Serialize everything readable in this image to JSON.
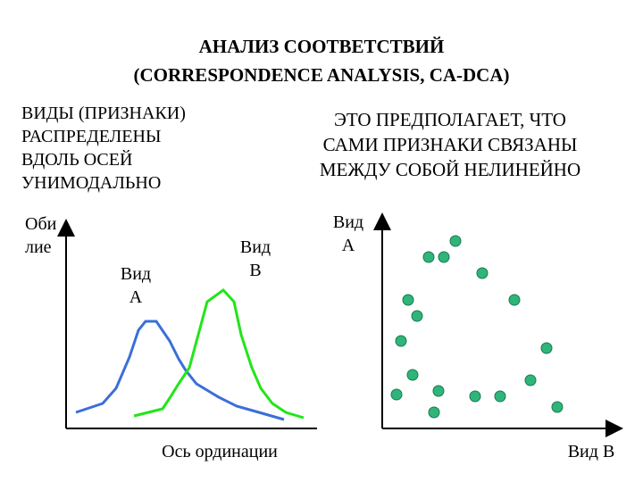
{
  "title": {
    "line1": "АНАЛИЗ СООТВЕТСТВИЙ",
    "line2": "(CORRESPONDENCE ANALYSIS, CA-DCA)"
  },
  "left_text": [
    "ВИДЫ (ПРИЗНАКИ)",
    "РАСПРЕДЕЛЕНЫ",
    "ВДОЛЬ ОСЕЙ",
    "УНИМОДАЛЬНО"
  ],
  "right_text": [
    "ЭТО ПРЕДПОЛАГАЕТ, ЧТО",
    "САМИ ПРИЗНАКИ СВЯЗАНЫ",
    "МЕЖДУ СОБОЙ НЕЛИНЕЙНО"
  ],
  "left_diagram": {
    "y_label": [
      "Оби",
      "лие"
    ],
    "x_label": "Ось ординации",
    "curve_a_label": [
      "Вид",
      "А"
    ],
    "curve_b_label": [
      "Вид",
      "В"
    ],
    "curve_a_color": "#3a6fd8",
    "curve_b_color": "#22e51a"
  },
  "right_diagram": {
    "y_label": [
      "Вид",
      "А"
    ],
    "x_label": "Вид В",
    "point_color": "#2fb57a",
    "point_stroke": "#1a7a50"
  }
}
